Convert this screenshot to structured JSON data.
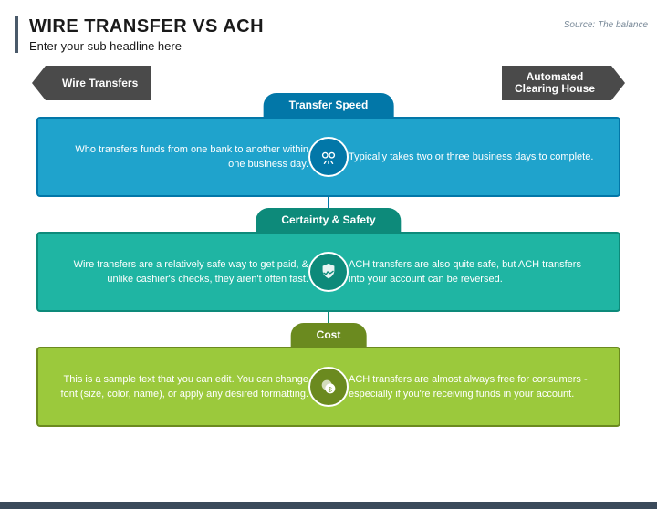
{
  "source": "Source: The balance",
  "title": "WIRE TRANSFER VS ACH",
  "subtitle": "Enter your sub headline here",
  "arrow_left": "Wire Transfers",
  "arrow_right": "Automated\nClearing House",
  "sections": [
    {
      "label": "Transfer Speed",
      "badge_bg": "#0277a8",
      "row_bg": "#1fa3cc",
      "row_border": "#0277a8",
      "icon_bg": "#0277a8",
      "left": "Who transfers funds from one bank to another within one business day.",
      "right": "Typically takes two or three business days to complete."
    },
    {
      "label": "Certainty & Safety",
      "badge_bg": "#0d8a7a",
      "row_bg": "#1fb5a3",
      "row_border": "#0d8a7a",
      "icon_bg": "#0d8a7a",
      "left": "Wire transfers are a relatively safe way to get paid, & unlike cashier's checks, they aren't often fast.",
      "right": "ACH transfers are also quite safe, but ACH transfers into your account can be reversed."
    },
    {
      "label": "Cost",
      "badge_bg": "#6b8a1f",
      "row_bg": "#9bc93c",
      "row_border": "#6b8a1f",
      "icon_bg": "#6b8a1f",
      "left": "This is a sample text that you can edit. You can change font (size, color, name), or apply any desired formatting.",
      "right": "ACH transfers are almost always free for consumers - especially if you're receiving funds in your account."
    }
  ]
}
